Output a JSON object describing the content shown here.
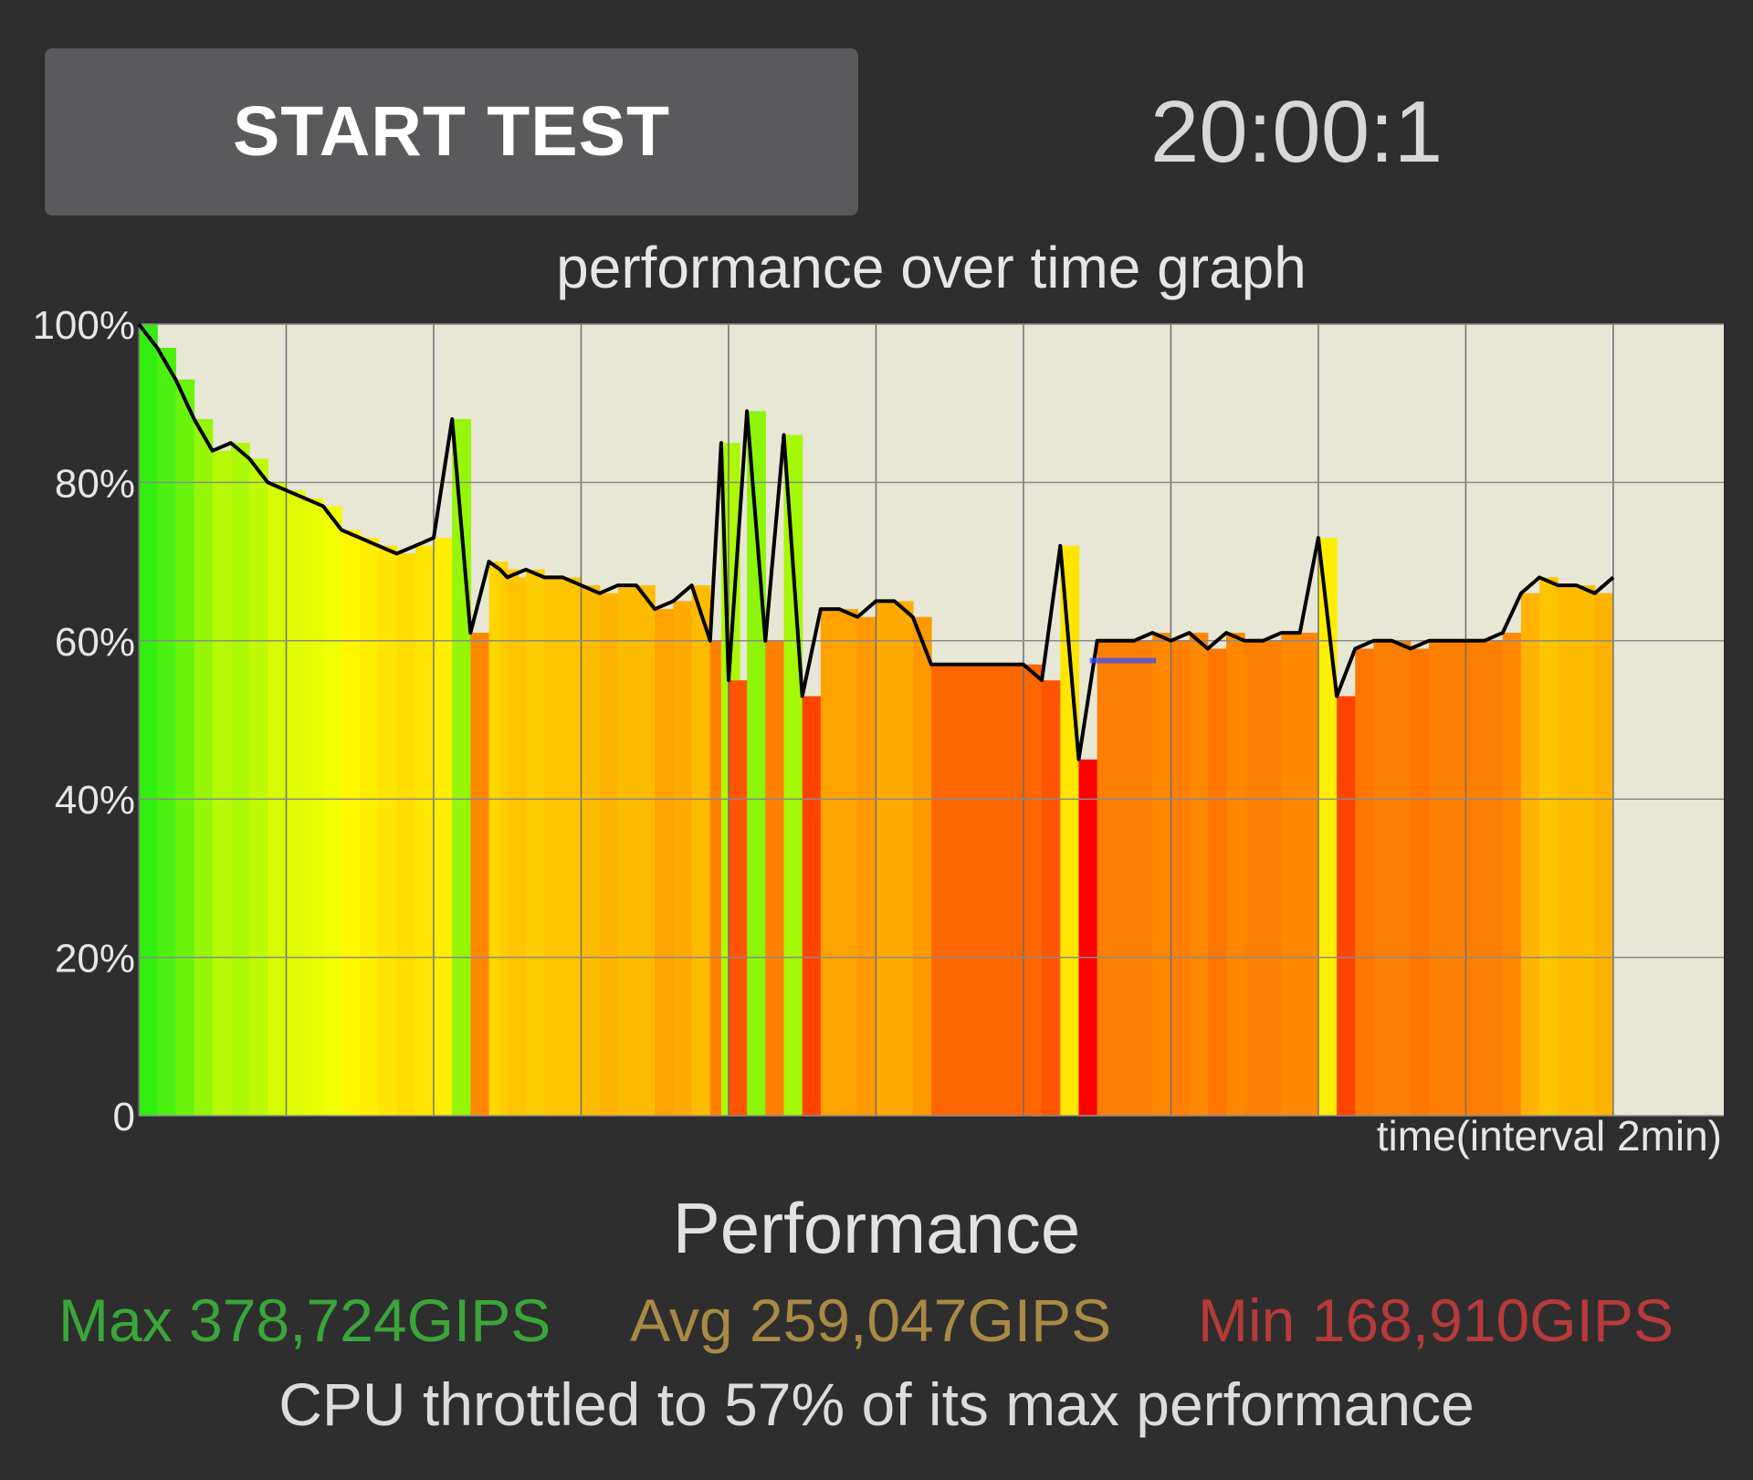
{
  "header": {
    "start_button_label": "START TEST",
    "timer": "20:00:1"
  },
  "chart_data": {
    "type": "area",
    "title": "performance over time graph",
    "xlabel": "time(interval 2min)",
    "ylabel": "",
    "ylim": [
      0,
      100
    ],
    "y_ticks": [
      "0",
      "20%",
      "40%",
      "60%",
      "80%",
      "100%"
    ],
    "x_interval_minutes": 2,
    "x_range_minutes": [
      0,
      21.5
    ],
    "grid": true,
    "series": [
      {
        "unit": "percent of max performance",
        "x": [
          0,
          0.25,
          0.5,
          0.75,
          1.0,
          1.25,
          1.5,
          1.75,
          2.0,
          2.25,
          2.5,
          2.75,
          3.0,
          3.25,
          3.5,
          3.75,
          4.0,
          4.25,
          4.5,
          4.75,
          4.9,
          5.0,
          5.25,
          5.5,
          5.75,
          6.0,
          6.25,
          6.5,
          6.75,
          7.0,
          7.25,
          7.5,
          7.75,
          7.9,
          8.0,
          8.25,
          8.5,
          8.75,
          9.0,
          9.25,
          9.5,
          9.75,
          10.0,
          10.25,
          10.5,
          10.75,
          11.0,
          11.25,
          11.5,
          11.75,
          12.0,
          12.25,
          12.5,
          12.75,
          13.0,
          13.25,
          13.5,
          13.75,
          14.0,
          14.25,
          14.5,
          14.75,
          15.0,
          15.25,
          15.5,
          15.75,
          16.0,
          16.25,
          16.5,
          16.75,
          17.0,
          17.25,
          17.5,
          17.75,
          18.0,
          18.25,
          18.5,
          18.75,
          19.0,
          19.25,
          19.5,
          19.75,
          20.0
        ],
        "y": [
          100,
          97,
          93,
          88,
          84,
          85,
          83,
          80,
          79,
          78,
          77,
          74,
          73,
          72,
          71,
          72,
          73,
          88,
          61,
          70,
          69,
          68,
          69,
          68,
          68,
          67,
          66,
          67,
          67,
          64,
          65,
          67,
          60,
          85,
          55,
          89,
          60,
          86,
          53,
          64,
          64,
          63,
          65,
          65,
          63,
          57,
          57,
          57,
          57,
          57,
          57,
          55,
          72,
          45,
          60,
          60,
          60,
          61,
          60,
          61,
          59,
          61,
          60,
          60,
          61,
          61,
          73,
          53,
          59,
          60,
          60,
          59,
          60,
          60,
          60,
          60,
          61,
          66,
          68,
          67,
          67,
          66,
          68
        ]
      }
    ],
    "marker_segment": {
      "x": [
        12.9,
        13.8
      ],
      "y": 57.5,
      "color": "#3a4cff"
    },
    "bar_colors": {
      "high": "#33ee11",
      "mid": "#ffff00",
      "low": "#ff0000"
    }
  },
  "results": {
    "heading": "Performance",
    "max": "Max 378,724GIPS",
    "avg": "Avg 259,047GIPS",
    "min": "Min 168,910GIPS",
    "throttle": "CPU throttled to 57% of its max performance"
  },
  "colors": {
    "background": "#2e2e2e",
    "button": "#5a5a5c",
    "plot_background": "#e8e6d5",
    "max_text": "#3aa63a",
    "avg_text": "#a88a45",
    "min_text": "#b83a3a"
  }
}
